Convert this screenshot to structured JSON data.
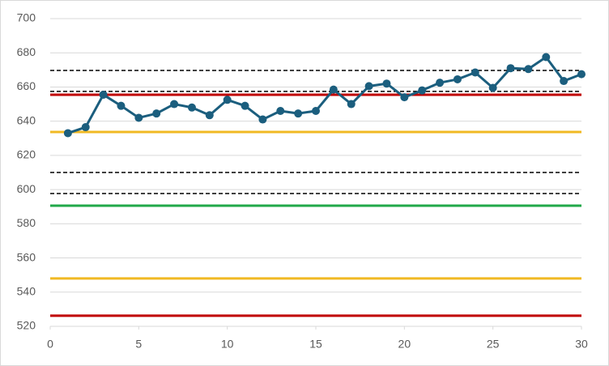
{
  "chart_data": {
    "type": "line",
    "x": [
      1,
      2,
      3,
      4,
      5,
      6,
      7,
      8,
      9,
      10,
      11,
      12,
      13,
      14,
      15,
      16,
      17,
      18,
      19,
      20,
      21,
      22,
      23,
      24,
      25,
      26,
      27,
      28,
      29,
      30
    ],
    "series": [
      {
        "color": "#1b5e7e",
        "values": [
          633,
          636.5,
          655.5,
          649,
          642,
          644.5,
          650,
          648,
          643.5,
          652.5,
          649,
          641,
          646,
          644.5,
          646,
          658.5,
          650,
          660.5,
          662,
          654,
          658,
          662.5,
          664.5,
          668.5,
          659.5,
          671,
          670.5,
          677.5,
          663.5,
          667.5
        ]
      }
    ],
    "reference_lines": [
      {
        "value": 669.7,
        "color": "#000000",
        "dashed": true
      },
      {
        "value": 657.4,
        "color": "#000000",
        "dashed": true
      },
      {
        "value": 655.5,
        "color": "#c00000",
        "dashed": false
      },
      {
        "value": 633.7,
        "color": "#f0b923",
        "dashed": false
      },
      {
        "value": 610,
        "color": "#000000",
        "dashed": true
      },
      {
        "value": 597.7,
        "color": "#000000",
        "dashed": true
      },
      {
        "value": 590.6,
        "color": "#22a84a",
        "dashed": false
      },
      {
        "value": 548,
        "color": "#f0b923",
        "dashed": false
      },
      {
        "value": 526.2,
        "color": "#c00000",
        "dashed": false
      }
    ],
    "xlim": [
      0,
      30
    ],
    "xticks": [
      0,
      5,
      10,
      15,
      20,
      25,
      30
    ],
    "ylim": [
      520,
      700
    ],
    "yticks": [
      520,
      540,
      560,
      580,
      600,
      620,
      640,
      660,
      680,
      700
    ],
    "grid": true
  }
}
